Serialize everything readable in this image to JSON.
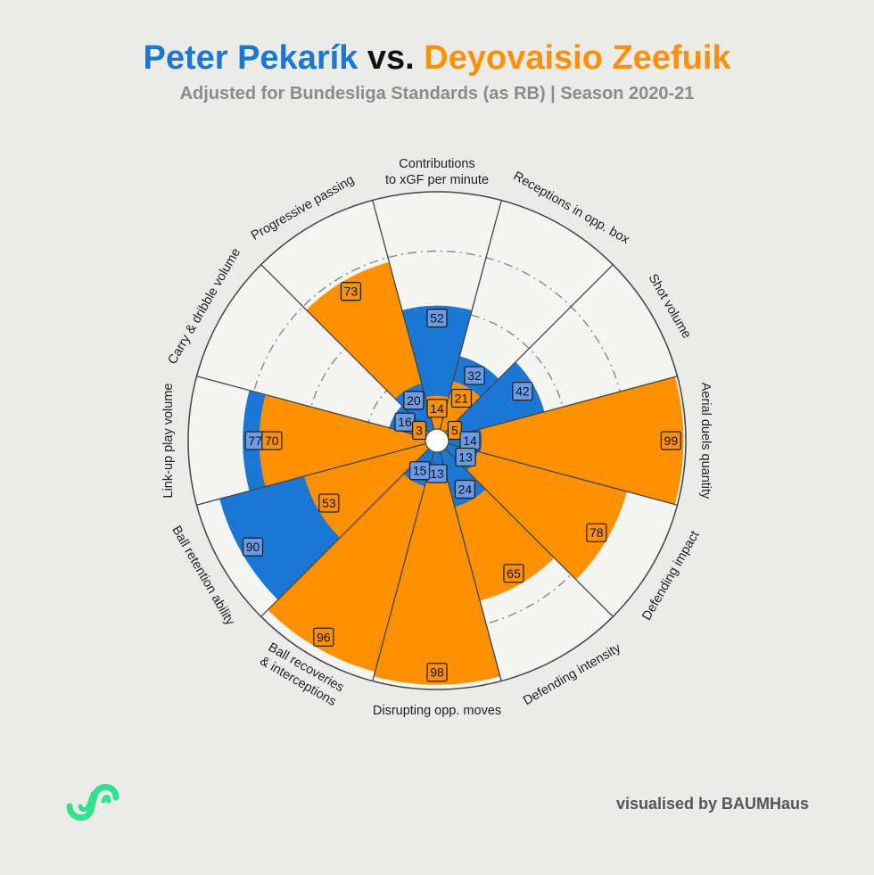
{
  "header": {
    "player1": "Peter Pekarík",
    "vs": "vs.",
    "player2": "Deyovaisio Zeefuik",
    "subtitle": "Adjusted for Bundesliga Standards (as RB) | Season 2020-21"
  },
  "credit": "visualised by BAUMHaus",
  "colors": {
    "background": "#ebebe9",
    "player1": "#1a78d4",
    "player1_label": "#6b9be8",
    "player2": "#ff9100",
    "grid_line": "#444444",
    "ring": "#888888",
    "plot_bg": "#f4f4f2",
    "logo": "#33e08c"
  },
  "chart_data": {
    "type": "polar-bar",
    "title": "Peter Pekarík vs. Deyovaisio Zeefuik",
    "subtitle": "Adjusted for Bundesliga Standards (as RB) | Season 2020-21",
    "rlim": [
      0,
      100
    ],
    "rings": [
      25,
      50,
      75
    ],
    "categories": [
      "Contributions to xGF per minute",
      "Receptions in opp. box",
      "Shot volume",
      "Aerial duels quantity",
      "Defending impact",
      "Defending intensity",
      "Disrupting opp. moves",
      "Ball recoveries & interceptions",
      "Ball retention ability",
      "Link-up play volume",
      "Carry & dribble volume",
      "Progressive passing"
    ],
    "label_lines": [
      [
        "Contributions",
        "to xGF per minute"
      ],
      [
        "Receptions in opp. box"
      ],
      [
        "Shot volume"
      ],
      [
        "Aerial duels quantity"
      ],
      [
        "Defending impact"
      ],
      [
        "Defending intensity"
      ],
      [
        "Disrupting opp. moves"
      ],
      [
        "Ball recoveries",
        "& interceptions"
      ],
      [
        "Ball retention ability"
      ],
      [
        "Link-up play volume"
      ],
      [
        "Carry & dribble volume"
      ],
      [
        "Progressive passing"
      ]
    ],
    "series": [
      {
        "name": "Peter Pekarík",
        "values": [
          52,
          32,
          42,
          14,
          13,
          24,
          13,
          15,
          90,
          77,
          16,
          20
        ]
      },
      {
        "name": "Deyovaisio Zeefuik",
        "values": [
          14,
          21,
          5,
          99,
          78,
          65,
          98,
          96,
          53,
          70,
          3,
          73
        ]
      }
    ]
  }
}
